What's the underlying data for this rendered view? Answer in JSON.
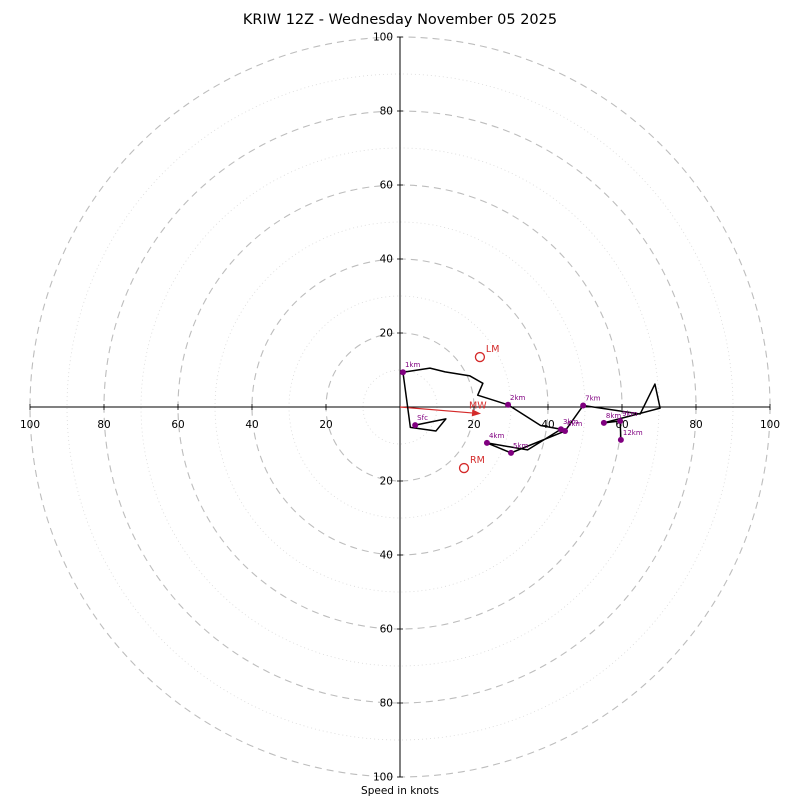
{
  "chart_data": {
    "type": "line",
    "chart_kind": "hodograph",
    "title": "KRIW 12Z - Wednesday November 05 2025",
    "xlabel": "Speed in knots",
    "units": "knots",
    "axis_range": [
      0,
      100
    ],
    "major_rings": [
      20,
      40,
      60,
      80,
      100
    ],
    "minor_rings": [
      10,
      30,
      50,
      70,
      90
    ],
    "grid": true,
    "colors": {
      "trace": "#000000",
      "points": "#800080",
      "markers": "#d42a2a",
      "grid_major": "#bdbdbd",
      "grid_minor": "#d9d9d9",
      "axis": "#000000"
    },
    "trace_uv": [
      [
        4.1,
        -4.9
      ],
      [
        12.4,
        -3.2
      ],
      [
        9.7,
        -6.5
      ],
      [
        2.8,
        -5.5
      ],
      [
        0.8,
        9.4
      ],
      [
        8.1,
        10.5
      ],
      [
        12.2,
        9.5
      ],
      [
        18.9,
        8.4
      ],
      [
        22.4,
        6.4
      ],
      [
        21.0,
        3.2
      ],
      [
        29.2,
        0.6
      ],
      [
        38.0,
        -5.0
      ],
      [
        43.5,
        -6.0
      ],
      [
        34.5,
        -11.6
      ],
      [
        23.5,
        -9.7
      ],
      [
        30.0,
        -12.4
      ],
      [
        44.6,
        -6.5
      ],
      [
        49.5,
        0.4
      ],
      [
        64.9,
        -1.9
      ],
      [
        68.9,
        6.2
      ],
      [
        70.3,
        -0.3
      ],
      [
        55.1,
        -4.3
      ],
      [
        59.5,
        -3.8
      ],
      [
        59.7,
        -8.9
      ]
    ],
    "levels": [
      {
        "label": "Sfc",
        "u": 4.1,
        "v": -4.9
      },
      {
        "label": "1km",
        "u": 0.8,
        "v": 9.4
      },
      {
        "label": "2km",
        "u": 29.2,
        "v": 0.6
      },
      {
        "label": "3km",
        "u": 43.5,
        "v": -6.0
      },
      {
        "label": "4km",
        "u": 23.5,
        "v": -9.7
      },
      {
        "label": "5km",
        "u": 30.0,
        "v": -12.4
      },
      {
        "label": "6km",
        "u": 44.6,
        "v": -6.5
      },
      {
        "label": "7km",
        "u": 49.5,
        "v": 0.4
      },
      {
        "label": "8km",
        "u": 55.1,
        "v": -4.3
      },
      {
        "label": "9km",
        "u": 59.5,
        "v": -3.8
      },
      {
        "label": "12km",
        "u": 59.7,
        "v": -8.9
      }
    ],
    "storm_motion_markers": [
      {
        "label": "LM",
        "u": 21.6,
        "v": 13.5
      },
      {
        "label": "RM",
        "u": 17.3,
        "v": -16.5
      }
    ],
    "mean_wind_marker": {
      "label": "MW",
      "u": 21.9,
      "v": -1.8
    }
  }
}
